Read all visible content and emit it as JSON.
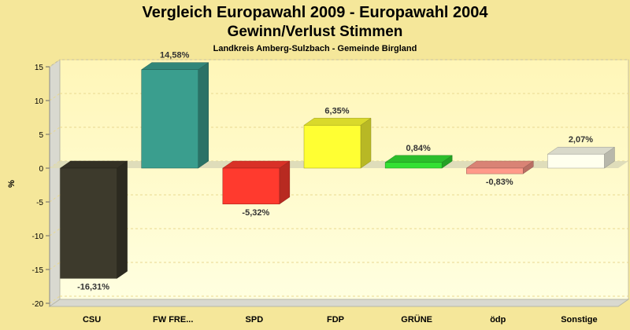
{
  "chart_data": {
    "type": "bar",
    "title": "Vergleich Europawahl 2009 - Europawahl 2004",
    "subtitle": "Gewinn/Verlust Stimmen",
    "subsubtitle": "Landkreis Amberg-Sulzbach - Gemeinde Birgland",
    "ylabel": "%",
    "xlabel": "",
    "ylim": [
      -20,
      15
    ],
    "yticks": [
      15,
      10,
      5,
      0,
      -5,
      -10,
      -15,
      -20
    ],
    "categories": [
      "CSU",
      "FW FRE...",
      "SPD",
      "FDP",
      "GRÜNE",
      "ödp",
      "Sonstige"
    ],
    "values": [
      -16.31,
      14.58,
      -5.32,
      6.35,
      0.84,
      -0.83,
      2.07
    ],
    "value_labels": [
      "-16,31%",
      "14,58%",
      "-5,32%",
      "6,35%",
      "0,84%",
      "-0,83%",
      "2,07%"
    ],
    "colors": [
      "#3d3a2c",
      "#3a9e8e",
      "#ff3a2e",
      "#ffff33",
      "#33e033",
      "#ff9a8a",
      "#ffffee"
    ],
    "grid": true,
    "legend": "none"
  },
  "theme": {
    "background": "#f5e79a",
    "plot_background": "#ffffd0",
    "zero_band": "#dcd9b8"
  }
}
